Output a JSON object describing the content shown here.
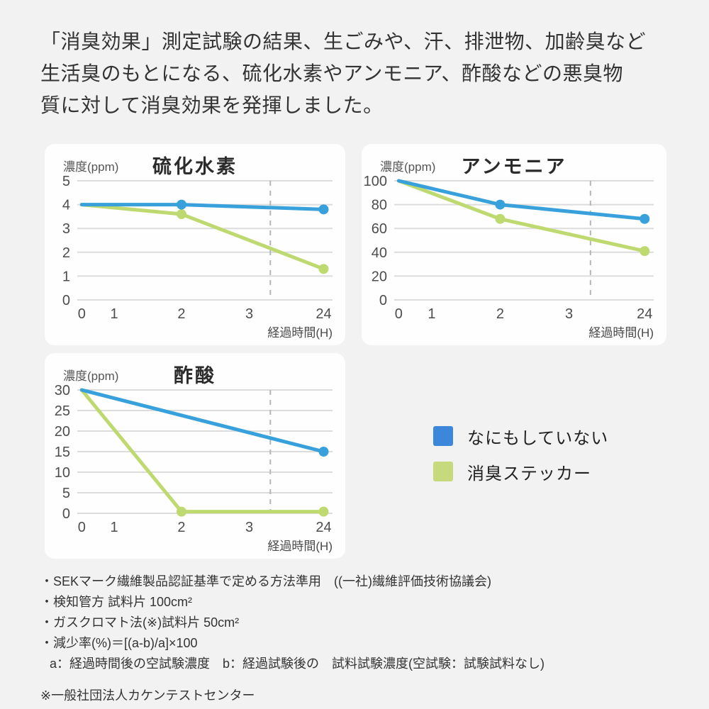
{
  "page": {
    "background": "#f2f2f2",
    "card_background": "#fefefe"
  },
  "header": {
    "lines": [
      "「消臭効果」測定試験の結果、生ごみや、汗、排泄物、加齢臭など",
      "生活臭のもとになる、硫化水素やアンモニア、酢酸などの悪臭物",
      "質に対して消臭効果を発揮しました。"
    ]
  },
  "colors": {
    "blue_line": "#38a1dc",
    "green_line": "#bed96f",
    "legend_blue": "#3d87db",
    "legend_green": "#c6da7d",
    "grid": "#dcdcdc",
    "dashed": "#b3b7ba",
    "tick_text": "#4d4d4d",
    "axis_text": "#4a4a4a"
  },
  "legend": {
    "items": [
      {
        "label": "なにもしていない",
        "color": "#3d87db"
      },
      {
        "label": "消臭ステッカー",
        "color": "#c6da7d"
      }
    ]
  },
  "chart_data": [
    {
      "type": "line",
      "title": "硫化水素",
      "ylabel": "濃度(ppm)",
      "xlabel": "経過時間(H)",
      "x_ticks": [
        "0",
        "1",
        "2",
        "3",
        "24"
      ],
      "y_ticks": [
        0,
        1,
        2,
        3,
        4,
        5
      ],
      "ylim": [
        0,
        5
      ],
      "dashed_x_fraction": 0.755,
      "grid": true,
      "series": [
        {
          "name": "なにもしていない",
          "color": "#38a1dc",
          "points": [
            {
              "x": 0,
              "y": 4.0
            },
            {
              "x": 2,
              "y": 4.0,
              "marker": true
            },
            {
              "x": 24,
              "y": 3.8,
              "marker": true
            }
          ]
        },
        {
          "name": "消臭ステッカー",
          "color": "#bed96f",
          "points": [
            {
              "x": 0,
              "y": 4.0
            },
            {
              "x": 2,
              "y": 3.6,
              "marker": true
            },
            {
              "x": 24,
              "y": 1.3,
              "marker": true
            }
          ]
        }
      ]
    },
    {
      "type": "line",
      "title": "アンモニア",
      "ylabel": "濃度(ppm)",
      "xlabel": "経過時間(H)",
      "x_ticks": [
        "0",
        "1",
        "2",
        "3",
        "24"
      ],
      "y_ticks": [
        0,
        20,
        40,
        60,
        80,
        100
      ],
      "ylim": [
        0,
        100
      ],
      "dashed_x_fraction": 0.755,
      "grid": true,
      "series": [
        {
          "name": "なにもしていない",
          "color": "#38a1dc",
          "points": [
            {
              "x": 0,
              "y": 100
            },
            {
              "x": 2,
              "y": 80,
              "marker": true
            },
            {
              "x": 24,
              "y": 68,
              "marker": true
            }
          ]
        },
        {
          "name": "消臭ステッカー",
          "color": "#bed96f",
          "points": [
            {
              "x": 0,
              "y": 100
            },
            {
              "x": 2,
              "y": 68,
              "marker": true
            },
            {
              "x": 24,
              "y": 41,
              "marker": true
            }
          ]
        }
      ]
    },
    {
      "type": "line",
      "title": "酢酸",
      "ylabel": "濃度(ppm)",
      "xlabel": "経過時間(H)",
      "x_ticks": [
        "0",
        "1",
        "2",
        "3",
        "24"
      ],
      "y_ticks": [
        0,
        5,
        10,
        15,
        20,
        25,
        30
      ],
      "ylim": [
        0,
        30
      ],
      "dashed_x_fraction": 0.755,
      "grid": true,
      "series": [
        {
          "name": "なにもしていない",
          "color": "#38a1dc",
          "points": [
            {
              "x": 0,
              "y": 30
            },
            {
              "x": 24,
              "y": 15,
              "marker": true
            }
          ]
        },
        {
          "name": "消臭ステッカー",
          "color": "#bed96f",
          "points": [
            {
              "x": 0,
              "y": 30
            },
            {
              "x": 2,
              "y": 0.4,
              "marker": true
            },
            {
              "x": 24,
              "y": 0.4,
              "marker": true
            }
          ]
        }
      ]
    }
  ],
  "footnotes": {
    "lines": [
      {
        "text": "・SEKマーク繊維製品認証基準で定める方法準用　((一社)繊維評価技術協議会)",
        "indent": false
      },
      {
        "text": "・検知管方 試料片 100cm²",
        "indent": false
      },
      {
        "text": "・ガスクロマト法(※)試料片 50cm²",
        "indent": false
      },
      {
        "text": "・減少率(%)＝[(a-b)/a]×100",
        "indent": false
      },
      {
        "text": "a：経過時間後の空試験濃度　b：経過試験後の　試料試験濃度(空試験：試験試料なし)",
        "indent": true
      }
    ],
    "note": "※一般社団法人カケンテストセンター"
  }
}
